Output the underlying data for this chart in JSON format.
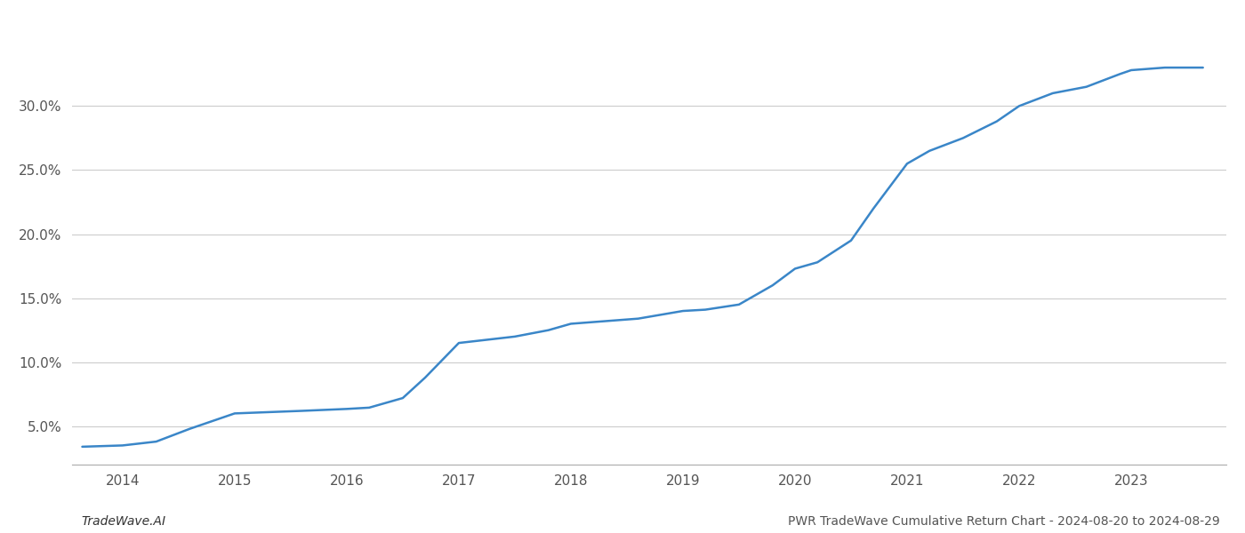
{
  "x_values": [
    2013.64,
    2014.0,
    2014.3,
    2014.6,
    2015.0,
    2015.3,
    2015.6,
    2016.0,
    2016.2,
    2016.5,
    2016.7,
    2017.0,
    2017.2,
    2017.5,
    2017.8,
    2018.0,
    2018.3,
    2018.6,
    2019.0,
    2019.2,
    2019.5,
    2019.8,
    2020.0,
    2020.2,
    2020.5,
    2020.7,
    2021.0,
    2021.2,
    2021.5,
    2021.8,
    2022.0,
    2022.3,
    2022.6,
    2022.9,
    2023.0,
    2023.3,
    2023.64
  ],
  "y_values": [
    3.4,
    3.5,
    3.8,
    4.8,
    6.0,
    6.1,
    6.2,
    6.35,
    6.45,
    7.2,
    8.8,
    11.5,
    11.7,
    12.0,
    12.5,
    13.0,
    13.2,
    13.4,
    14.0,
    14.1,
    14.5,
    16.0,
    17.3,
    17.8,
    19.5,
    22.0,
    25.5,
    26.5,
    27.5,
    28.8,
    30.0,
    31.0,
    31.5,
    32.5,
    32.8,
    33.0,
    33.0
  ],
  "line_color": "#3a86c8",
  "line_width": 1.8,
  "background_color": "#ffffff",
  "grid_color": "#cccccc",
  "xlabel": "",
  "ylabel": "",
  "title": "",
  "footer_left": "TradeWave.AI",
  "footer_right": "PWR TradeWave Cumulative Return Chart - 2024-08-20 to 2024-08-29",
  "x_ticks": [
    2014,
    2015,
    2016,
    2017,
    2018,
    2019,
    2020,
    2021,
    2022,
    2023
  ],
  "y_ticks": [
    5.0,
    10.0,
    15.0,
    20.0,
    25.0,
    30.0
  ],
  "xlim": [
    2013.55,
    2023.85
  ],
  "ylim": [
    2.0,
    36.0
  ],
  "footer_fontsize": 10,
  "tick_fontsize": 11
}
